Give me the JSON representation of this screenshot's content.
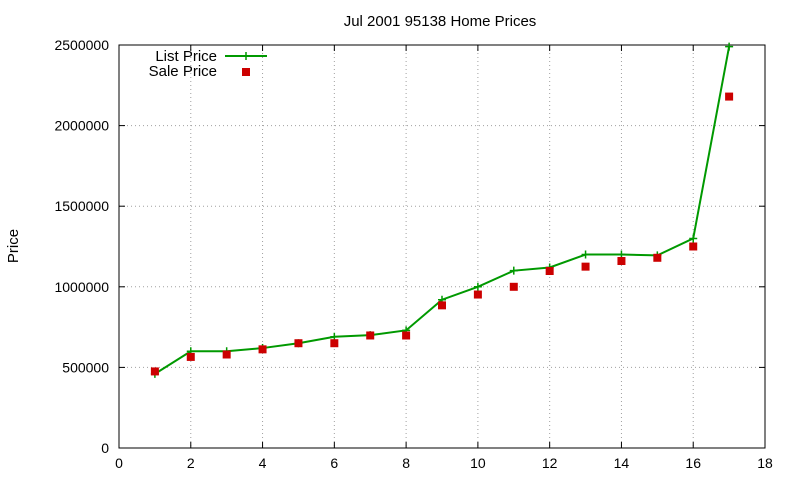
{
  "chart_data": {
    "type": "line",
    "title": "Jul 2001 95138 Home Prices",
    "xlabel": "",
    "ylabel": "Price",
    "xlim": [
      0,
      18
    ],
    "ylim": [
      0,
      2500000
    ],
    "x_ticks": [
      0,
      2,
      4,
      6,
      8,
      10,
      12,
      14,
      16,
      18
    ],
    "y_ticks": [
      0,
      500000,
      1000000,
      1500000,
      2000000,
      2500000
    ],
    "x_tick_labels": [
      "0",
      "2",
      "4",
      "6",
      "8",
      "10",
      "12",
      "14",
      "16",
      "18"
    ],
    "y_tick_labels": [
      "0",
      "500000",
      "1000000",
      "1500000",
      "2000000",
      "2500000"
    ],
    "grid": true,
    "legend_position": "top-left",
    "series": [
      {
        "name": "List Price",
        "style": "line-with-plus-markers",
        "color": "#009900",
        "x": [
          1,
          2,
          3,
          4,
          5,
          6,
          7,
          8,
          9,
          10,
          11,
          12,
          13,
          14,
          15,
          16,
          17
        ],
        "values": [
          460000,
          600000,
          600000,
          620000,
          650000,
          690000,
          700000,
          730000,
          920000,
          1000000,
          1100000,
          1120000,
          1200000,
          1200000,
          1195000,
          1300000,
          2490000
        ]
      },
      {
        "name": "Sale Price",
        "style": "square-markers",
        "color": "#cc0000",
        "x": [
          1,
          2,
          3,
          4,
          5,
          6,
          7,
          8,
          9,
          10,
          11,
          12,
          13,
          14,
          15,
          16,
          17
        ],
        "values": [
          475000,
          565000,
          580000,
          612000,
          650000,
          650000,
          698000,
          698000,
          885000,
          952000,
          1000000,
          1098000,
          1125000,
          1160000,
          1180000,
          1250000,
          2180000
        ]
      }
    ]
  }
}
